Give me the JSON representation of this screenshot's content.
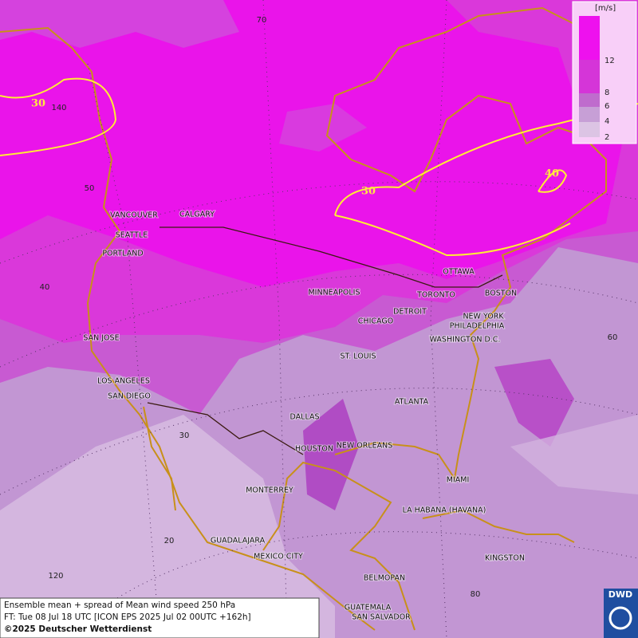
{
  "map": {
    "grid_labels": [
      "70",
      "140",
      "50",
      "40",
      "30",
      "20",
      "120",
      "60",
      "80"
    ],
    "contour_labels": [
      "30",
      "30",
      "40"
    ],
    "cities": [
      "VANCOUVER",
      "CALGARY",
      "SEATTLE",
      "PORTLAND",
      "MINNEAPOLIS",
      "TORONTO",
      "OTTAWA",
      "BOSTON",
      "DETROIT",
      "CHICAGO",
      "NEW YORK",
      "PHILADELPHIA",
      "WASHINGTON D.C.",
      "SAN JOSE",
      "ST. LOUIS",
      "LOS ANGELES",
      "SAN DIEGO",
      "ATLANTA",
      "DALLAS",
      "HOUSTON",
      "NEW ORLEANS",
      "MIAMI",
      "MONTERREY",
      "LA HABANA (HAVANA)",
      "GUADALAJARA",
      "MEXICO CITY",
      "KINGSTON",
      "BELMOPAN",
      "GUATEMALA",
      "SAN SALVADOR"
    ]
  },
  "legend": {
    "unit": "[m/s]",
    "levels": [
      "12",
      "8",
      "6",
      "4",
      "2"
    ]
  },
  "footer": {
    "lines": [
      "Ensemble mean + spread of Mean wind speed 250 hPa",
      "FT: Tue 08 Jul 18 UTC [ICON EPS 2025 Jul 02 00UTC +162h]",
      "©2025 Deutscher Wetterdienst"
    ]
  },
  "logo": "DWD"
}
